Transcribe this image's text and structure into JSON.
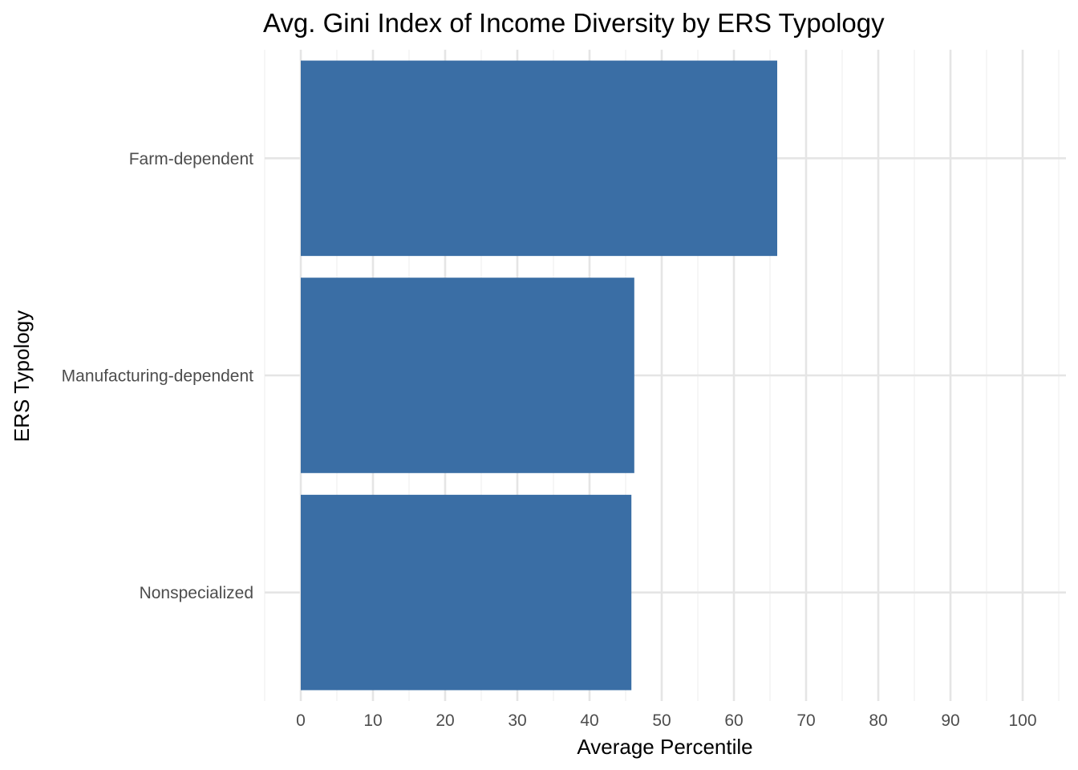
{
  "chart_data": {
    "type": "bar",
    "orientation": "horizontal",
    "title": "Avg. Gini Index of Income Diversity by ERS Typology",
    "xlabel": "Average Percentile",
    "ylabel": "ERS Typology",
    "categories": [
      "Farm-dependent",
      "Manufacturing-dependent",
      "Nonspecialized"
    ],
    "values": [
      66,
      46.2,
      45.8
    ],
    "xlim": [
      -5,
      106
    ],
    "x_ticks": [
      0,
      10,
      20,
      30,
      40,
      50,
      60,
      70,
      80,
      90,
      100
    ],
    "grid": true,
    "legend": "none",
    "colors": {
      "bar": "#3A6EA5",
      "grid_major": "#E5E5E5",
      "grid_minor": "#F0F0F0",
      "tick_text": "#4D4D4D",
      "title_text": "#000000"
    }
  }
}
